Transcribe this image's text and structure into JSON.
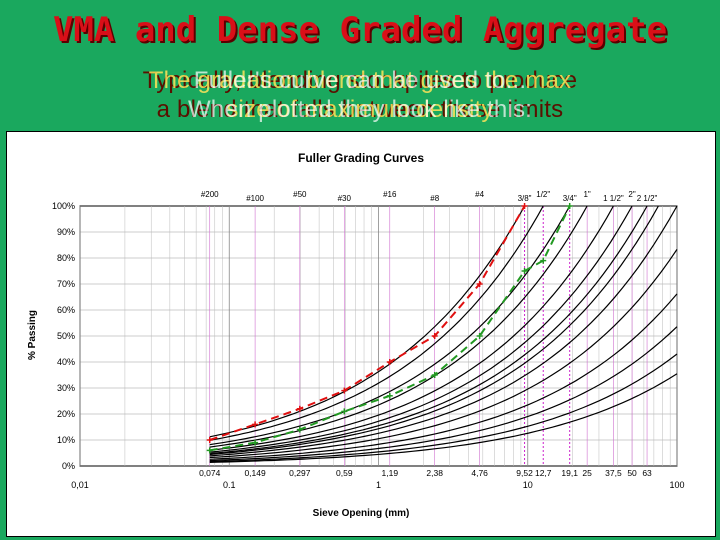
{
  "slide": {
    "title": "VMA and Dense Graded Aggregate",
    "overlay_lines": [
      [
        "Typically, blending stockpiles to produce",
        "The gradation blend that gives the max",
        "Fuller's curve can be used to..."
      ],
      [
        "a blend that falls between these limits",
        "size of maximum density",
        "When plotted they look like this:"
      ]
    ]
  },
  "chart_data": {
    "type": "line",
    "title": "Fuller Grading Curves",
    "xlabel": "Sieve Opening (mm)",
    "ylabel": "% Passing",
    "x_scale": "log",
    "xlim": [
      0.01,
      100
    ],
    "ylim": [
      0,
      100
    ],
    "x_ticks": [
      "0,01",
      "0.1",
      "1",
      "10",
      "100"
    ],
    "y_ticks": [
      "0%",
      "10%",
      "20%",
      "30%",
      "40%",
      "50%",
      "60%",
      "70%",
      "80%",
      "90%",
      "100%"
    ],
    "grid": true,
    "fuller_exponent": 0.45,
    "sieve_sizes_mm": [
      0.074,
      0.149,
      0.297,
      0.59,
      1.19,
      2.38,
      4.76,
      9.52,
      12.7,
      19.1,
      25,
      37.5,
      50,
      63
    ],
    "sieve_size_labels": [
      "0,074",
      "0,149",
      "0,297",
      "0,59",
      "1,19",
      "2,38",
      "4,76",
      "9,52",
      "12,7",
      "19,1",
      "25",
      "37,5",
      "50",
      "63"
    ],
    "sieve_names": [
      {
        "label": "#200",
        "mm": 0.074
      },
      {
        "label": "#100",
        "mm": 0.149
      },
      {
        "label": "#50",
        "mm": 0.297
      },
      {
        "label": "#30",
        "mm": 0.59
      },
      {
        "label": "#16",
        "mm": 1.19
      },
      {
        "label": "#8",
        "mm": 2.38
      },
      {
        "label": "#4",
        "mm": 4.76
      },
      {
        "label": "3/8\"",
        "mm": 9.52
      },
      {
        "label": "1/2\"",
        "mm": 12.7
      },
      {
        "label": "3/4\"",
        "mm": 19.1
      },
      {
        "label": "1\"",
        "mm": 25
      },
      {
        "label": "1 1/2\"",
        "mm": 37.5
      },
      {
        "label": "2\"",
        "mm": 50
      },
      {
        "label": "2 1/2\"",
        "mm": 63
      }
    ],
    "curves_max_size_mm": [
      9.52,
      12.7,
      19.1,
      25,
      37.5,
      50,
      63,
      75,
      100,
      150,
      250,
      400,
      650,
      1000
    ],
    "highlight_sieves_mm": [
      9.52,
      12.7,
      19.1
    ],
    "series": [
      {
        "color": "#e01010",
        "x": [
          0.074,
          0.149,
          0.297,
          0.59,
          1.19,
          2.38,
          4.76,
          9.52
        ],
        "y": [
          10,
          16,
          22,
          29,
          40,
          50,
          70,
          100
        ]
      },
      {
        "color": "#229922",
        "x": [
          0.074,
          0.149,
          0.297,
          0.59,
          1.19,
          2.38,
          4.76,
          9.52,
          12.7,
          19.1
        ],
        "y": [
          6,
          9,
          14,
          21,
          27,
          35,
          50,
          75,
          79,
          100
        ]
      }
    ]
  }
}
